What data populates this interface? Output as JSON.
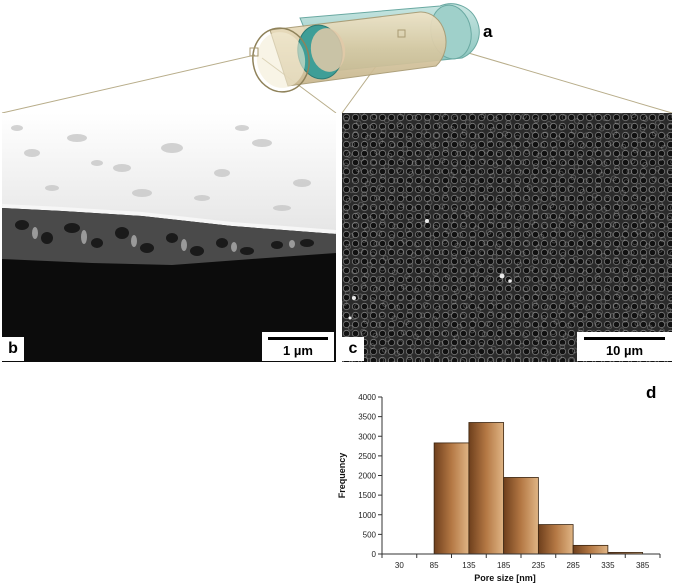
{
  "panels": {
    "a": {
      "letter": "a"
    },
    "b": {
      "letter": "b",
      "scale_label": "1 µm"
    },
    "c": {
      "letter": "c",
      "scale_label": "10 µm"
    },
    "d": {
      "letter": "d"
    }
  },
  "colors": {
    "tube_outer": "#d9c9a3",
    "tube_inner": "#4fa7a0",
    "bar_fill_dark": "#7a4a22",
    "bar_fill_light": "#d4a070",
    "connector": "#b8ad8a"
  },
  "chart_data": {
    "type": "bar",
    "title": "",
    "xlabel": "Pore size [nm]",
    "ylabel": "Frequency",
    "categories": [
      "30",
      "85",
      "135",
      "185",
      "235",
      "285",
      "335",
      "385"
    ],
    "bins": [
      {
        "from": "85",
        "to": "135",
        "value": 2830
      },
      {
        "from": "135",
        "to": "185",
        "value": 3350
      },
      {
        "from": "185",
        "to": "235",
        "value": 1950
      },
      {
        "from": "235",
        "to": "285",
        "value": 750
      },
      {
        "from": "285",
        "to": "335",
        "value": 220
      },
      {
        "from": "335",
        "to": "385",
        "value": 40
      }
    ],
    "yticks": [
      "0",
      "500",
      "1000",
      "1500",
      "2000",
      "2500",
      "3000",
      "3500",
      "4000"
    ],
    "ylim": [
      0,
      4000
    ],
    "grid": false,
    "legend": "none"
  }
}
